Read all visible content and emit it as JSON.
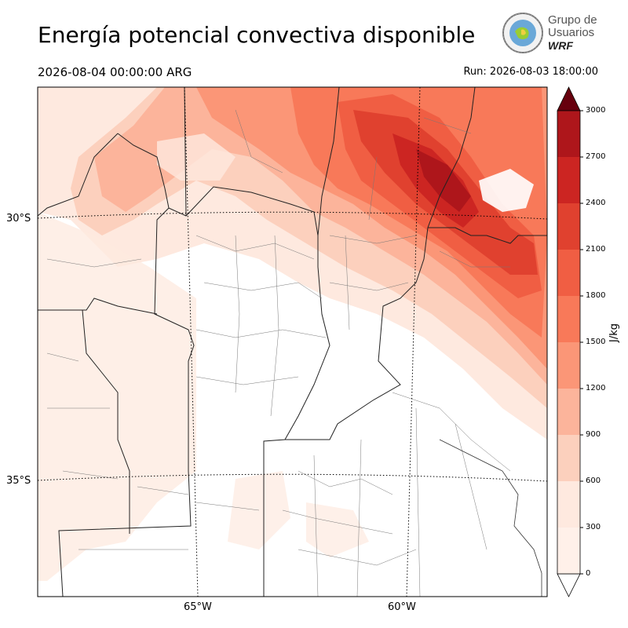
{
  "header": {
    "title": "Energía potencial convectiva disponible",
    "valid_time": "2026-08-04 00:00:00 ARG",
    "run_time": "Run: 2026-08-03 18:00:00"
  },
  "logo": {
    "line1": "Grupo de",
    "line2": "Usuarios",
    "line3": "WRF"
  },
  "map": {
    "variable": "CAPE",
    "lat_labels": [
      "30°S",
      "35°S"
    ],
    "lon_labels": [
      "65°W",
      "60°W"
    ],
    "colors": {
      "c0": "#ffffff",
      "c300": "#fee9df",
      "c600": "#fcd0bd",
      "c900": "#fcb49b",
      "c1200": "#fb9677",
      "c1500": "#f87959",
      "c1800": "#f05e43",
      "c2100": "#e0412f",
      "c2400": "#cc2522",
      "c2700": "#ae161b",
      "c3000": "#860a13"
    }
  },
  "colorbar": {
    "unit": "J/kg",
    "ticks": [
      "0",
      "300",
      "600",
      "900",
      "1200",
      "1500",
      "1800",
      "2100",
      "2400",
      "2700",
      "3000"
    ]
  }
}
